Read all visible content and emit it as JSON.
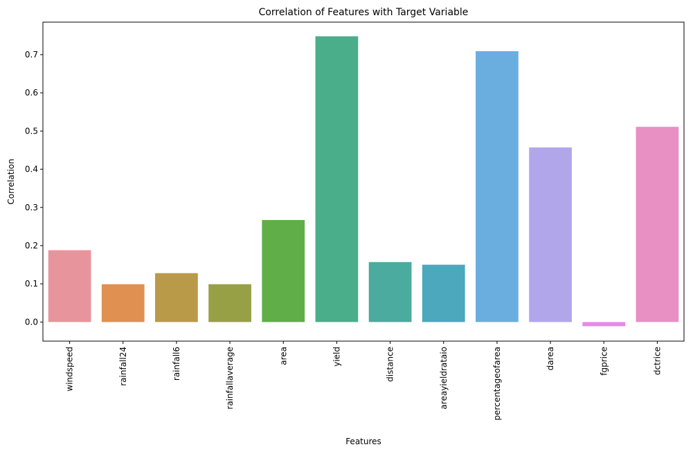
{
  "chart_data": {
    "type": "bar",
    "title": "Correlation of Features with Target Variable",
    "xlabel": "Features",
    "ylabel": "Correlation",
    "categories": [
      "windspeed",
      "rainfall24",
      "rainfall6",
      "rainfallaverage",
      "area",
      "yield",
      "distance",
      "areayieldrataio",
      "percentageofarea",
      "darea",
      "fgprice",
      "dctrice"
    ],
    "values": [
      0.188,
      0.099,
      0.128,
      0.099,
      0.267,
      0.748,
      0.157,
      0.15,
      0.709,
      0.457,
      -0.011,
      0.511
    ],
    "colors": [
      "#e8949d",
      "#e09050",
      "#b99a48",
      "#98a045",
      "#5fae47",
      "#4aae8a",
      "#4aab9e",
      "#4ba8bd",
      "#6aaee0",
      "#b2a6eb",
      "#e58ae4",
      "#e88fc4"
    ],
    "yticks": [
      0.0,
      0.1,
      0.2,
      0.3,
      0.4,
      0.5,
      0.6,
      0.7
    ],
    "ylim": [
      -0.05,
      0.785
    ],
    "grid": false,
    "legend": "none"
  }
}
